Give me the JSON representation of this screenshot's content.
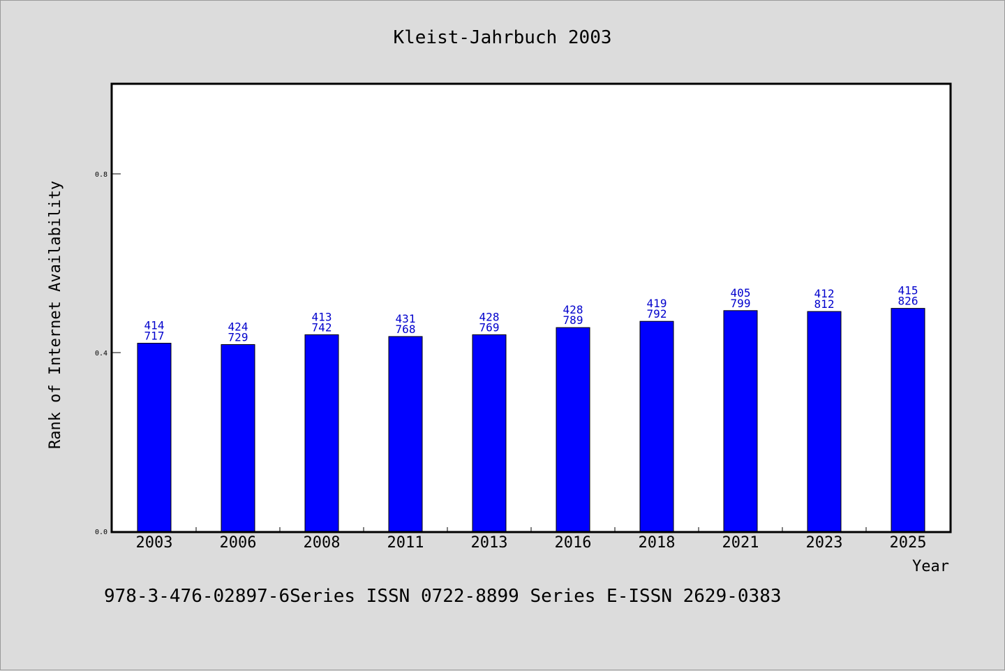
{
  "chart_data": {
    "type": "bar",
    "title": "Kleist-Jahrbuch 2003",
    "xlabel": "Year",
    "ylabel": "Rank of Internet Availability",
    "footer": "978-3-476-02897-6Series ISSN 0722-8899 Series E-ISSN 2629-0383",
    "categories": [
      "2003",
      "2006",
      "2008",
      "2011",
      "2013",
      "2016",
      "2018",
      "2021",
      "2023",
      "2025"
    ],
    "values": [
      0.421,
      0.418,
      0.44,
      0.436,
      0.44,
      0.456,
      0.47,
      0.494,
      0.492,
      0.499
    ],
    "labels_top": [
      "414",
      "424",
      "413",
      "431",
      "428",
      "428",
      "419",
      "405",
      "412",
      "415"
    ],
    "labels_bottom": [
      "717",
      "729",
      "742",
      "768",
      "769",
      "789",
      "792",
      "799",
      "812",
      "826"
    ],
    "ylim": [
      0,
      1.0
    ],
    "yticks": [
      0.0,
      0.4,
      0.8
    ],
    "ytick_labels": [
      "0.0",
      "0.4",
      "0.8"
    ],
    "bar_color": "#0000ff",
    "label_color": "#0000cc",
    "grid": false,
    "legend": "none"
  }
}
